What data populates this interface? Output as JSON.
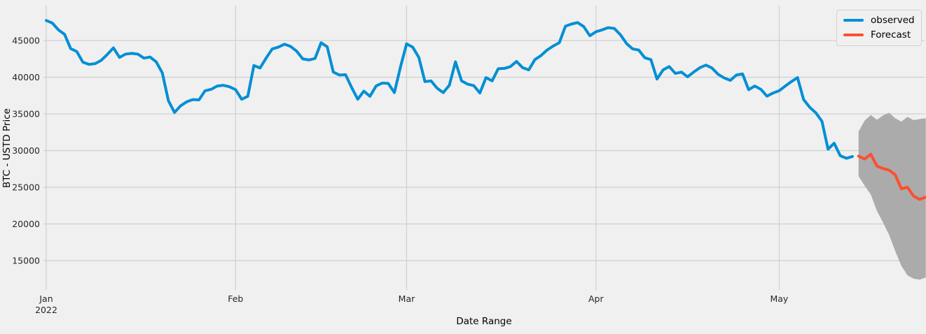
{
  "chart_data": {
    "type": "line",
    "title": "",
    "xlabel": "Date Range",
    "ylabel": "BTC - USTD Price",
    "grid": true,
    "background_color": "#f0f0f0",
    "grid_color": "#cfcfcf",
    "tick_color": "#262626",
    "xlim": [
      "2022-01-01",
      "2022-05-25"
    ],
    "ylim": [
      12000,
      48500
    ],
    "y_ticks": [
      15000,
      20000,
      25000,
      30000,
      35000,
      40000,
      45000
    ],
    "x_ticks": [
      {
        "label": "Jan",
        "sublabel": "2022",
        "date": "2022-01-01"
      },
      {
        "label": "Feb",
        "sublabel": "",
        "date": "2022-02-01"
      },
      {
        "label": "Mar",
        "sublabel": "",
        "date": "2022-03-01"
      },
      {
        "label": "Apr",
        "sublabel": "",
        "date": "2022-04-01"
      },
      {
        "label": "May",
        "sublabel": "",
        "date": "2022-05-01"
      }
    ],
    "legend": {
      "position": "upper right"
    },
    "series": [
      {
        "name": "observed",
        "color": "#008fd5",
        "line_width": 4,
        "cadence": "daily",
        "start_date": "2022-01-01",
        "values": [
          47730,
          47380,
          46450,
          45850,
          43900,
          43500,
          42050,
          41750,
          41850,
          42300,
          43100,
          44000,
          42700,
          43150,
          43250,
          43150,
          42600,
          42750,
          42100,
          40600,
          36800,
          35200,
          36100,
          36650,
          36950,
          36900,
          38150,
          38350,
          38800,
          38900,
          38700,
          38300,
          37000,
          37400,
          41600,
          41250,
          42600,
          43850,
          44100,
          44500,
          44200,
          43550,
          42500,
          42350,
          42550,
          44700,
          44150,
          40700,
          40300,
          40350,
          38600,
          37000,
          38100,
          37400,
          38800,
          39200,
          39150,
          37900,
          41400,
          44550,
          44100,
          42700,
          39400,
          39500,
          38500,
          37900,
          38900,
          42100,
          39500,
          39050,
          38850,
          37850,
          39950,
          39500,
          41150,
          41200,
          41450,
          42150,
          41300,
          41000,
          42400,
          42950,
          43700,
          44250,
          44700,
          46950,
          47250,
          47450,
          46900,
          45650,
          46200,
          46450,
          46750,
          46650,
          45800,
          44600,
          43860,
          43700,
          42650,
          42400,
          39750,
          41000,
          41450,
          40520,
          40700,
          40050,
          40700,
          41290,
          41650,
          41250,
          40400,
          39900,
          39570,
          40300,
          40450,
          38300,
          38800,
          38350,
          37420,
          37850,
          38150,
          38800,
          39400,
          39950,
          36950,
          35900,
          35150,
          34000,
          30200,
          31000,
          29300,
          28950,
          29200
        ]
      },
      {
        "name": "Forecast",
        "color": "#fc4f30",
        "line_width": 4,
        "cadence": "daily",
        "start_date": "2022-05-14",
        "values": [
          29240,
          28850,
          29500,
          27900,
          27550,
          27330,
          26700,
          24800,
          25000,
          23800,
          23350,
          23650
        ]
      }
    ],
    "confidence_band": {
      "series": "Forecast",
      "color": "#ababab",
      "cadence": "daily",
      "start_date": "2022-05-14",
      "upper": [
        32600,
        34100,
        34850,
        34200,
        34800,
        35150,
        34400,
        33950,
        34600,
        34150,
        34300,
        34400
      ],
      "lower": [
        26500,
        25200,
        24000,
        21800,
        20200,
        18500,
        16300,
        14300,
        13000,
        12550,
        12400,
        12700
      ]
    }
  }
}
